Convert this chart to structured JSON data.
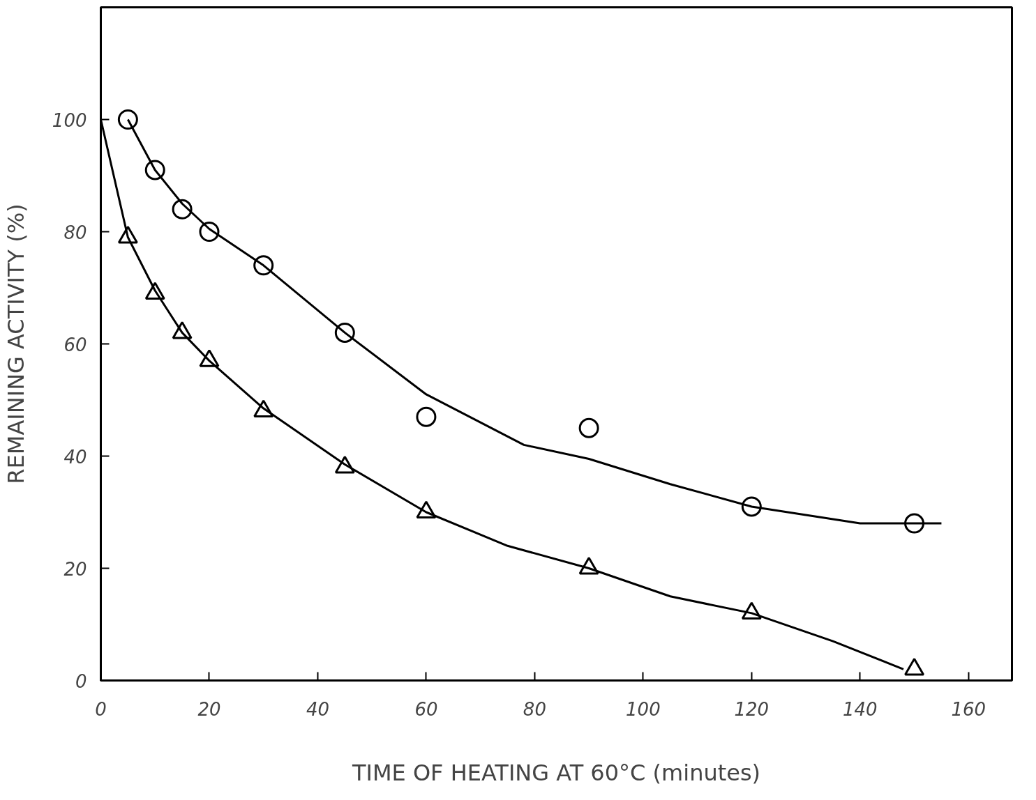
{
  "chart_data": {
    "type": "scatter",
    "xlabel": "TIME OF HEATING AT 60°C (minutes)",
    "ylabel": "REMAINING ACTIVITY (%)",
    "xlim": [
      0,
      168
    ],
    "ylim": [
      0,
      120
    ],
    "xticks": [
      0,
      20,
      40,
      60,
      80,
      100,
      120,
      140,
      160
    ],
    "yticks": [
      0,
      20,
      40,
      60,
      80,
      100
    ],
    "grid": false,
    "series": [
      {
        "type": "line",
        "color": "#000000",
        "marker": "none",
        "line_style": "solid",
        "x": [
          5,
          10,
          15,
          20,
          30,
          45,
          60,
          78,
          90,
          105,
          120,
          140,
          155
        ],
        "values": [
          100,
          91,
          85,
          80.5,
          74,
          62,
          51,
          42,
          39.5,
          35,
          31,
          28,
          28
        ]
      },
      {
        "type": "line",
        "color": "#000000",
        "marker": "none",
        "line_style": "solid",
        "x": [
          0,
          5,
          10,
          15,
          20,
          30,
          45,
          60,
          75,
          90,
          105,
          120,
          135,
          148
        ],
        "values": [
          100,
          79,
          69.5,
          62,
          57,
          48.5,
          38.5,
          30,
          24,
          20,
          15,
          12,
          7,
          2
        ]
      },
      {
        "color": "#000000",
        "marker": "circle",
        "x": [
          5,
          10,
          15,
          20,
          30,
          45,
          60,
          90,
          120,
          150
        ],
        "values": [
          100,
          91,
          84,
          80,
          74,
          62,
          47,
          45,
          31,
          28
        ]
      },
      {
        "color": "#000000",
        "marker": "triangle",
        "x": [
          5,
          10,
          15,
          20,
          30,
          45,
          60,
          90,
          120,
          150
        ],
        "values": [
          79,
          69,
          62,
          57,
          48,
          38,
          30,
          20,
          12,
          2
        ]
      }
    ]
  }
}
